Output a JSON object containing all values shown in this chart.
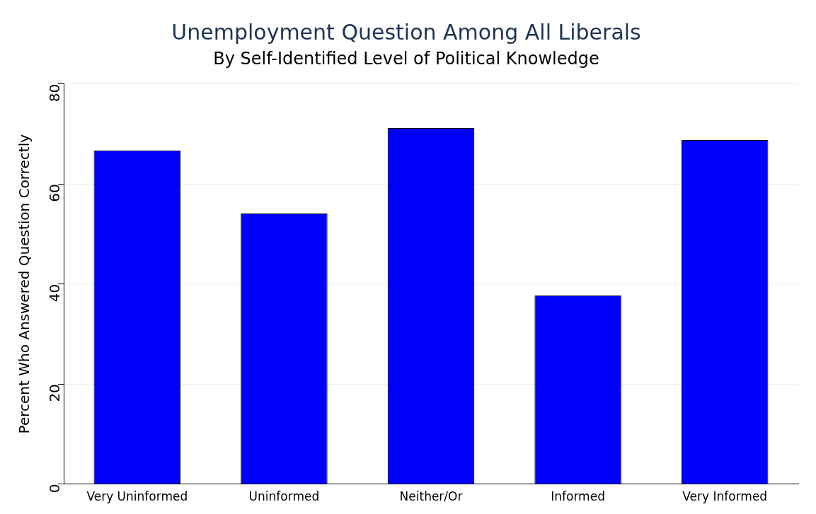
{
  "chart_data": {
    "type": "bar",
    "title": "Unemployment Question Among All Liberals",
    "subtitle": "By Self-Identified Level of Political Knowledge",
    "ylabel": "Percent Who Answered Question Correctly",
    "categories": [
      "Very Uninformed",
      "Uninformed",
      "Neither/Or",
      "Informed",
      "Very Informed"
    ],
    "values": [
      66.7,
      54.1,
      71.2,
      37.7,
      68.8
    ],
    "color": "#0000ff",
    "ylim": [
      0,
      80
    ],
    "yticks": [
      0,
      20,
      40,
      60,
      80
    ],
    "grid": "y"
  }
}
